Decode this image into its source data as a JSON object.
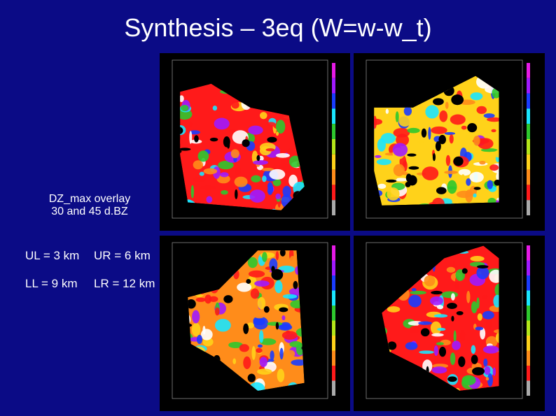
{
  "title": "Synthesis – 3eq (W=w-w_t)",
  "notes": {
    "overlay": "DZ_max overlay",
    "levels": "30 and 45 d.BZ"
  },
  "panels": {
    "ul": "UL = 3 km",
    "ur": "UR = 6 km",
    "ll": "LL = 9 km",
    "lr": "LR = 12 km"
  }
}
